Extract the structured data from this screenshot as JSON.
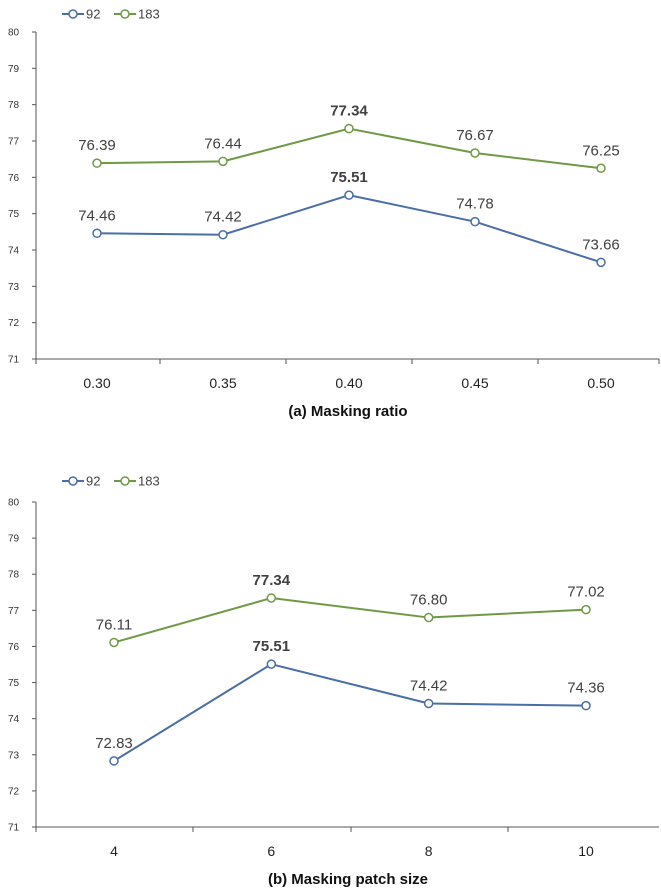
{
  "chart_data": [
    {
      "type": "line",
      "caption": "(a) Masking ratio",
      "categories": [
        "0.30",
        "0.35",
        "0.40",
        "0.45",
        "0.50"
      ],
      "series": [
        {
          "name": "92",
          "values": [
            74.46,
            74.42,
            75.51,
            74.78,
            73.66
          ],
          "color": "#4a6fa5"
        },
        {
          "name": "183",
          "values": [
            76.39,
            76.44,
            77.34,
            76.67,
            76.25
          ],
          "color": "#6f9a45"
        }
      ],
      "bold_index": 2,
      "ylim": [
        71,
        80
      ],
      "yticks": [
        71,
        72,
        73,
        74,
        75,
        76,
        77,
        78,
        79,
        80
      ],
      "legend": "top-left",
      "grid": false
    },
    {
      "type": "line",
      "caption": "(b) Masking patch size",
      "categories": [
        "4",
        "6",
        "8",
        "10"
      ],
      "series": [
        {
          "name": "92",
          "values": [
            72.83,
            75.51,
            74.42,
            74.36
          ],
          "color": "#4a6fa5"
        },
        {
          "name": "183",
          "values": [
            76.11,
            77.34,
            76.8,
            77.02
          ],
          "color": "#6f9a45"
        }
      ],
      "bold_index": 1,
      "ylim": [
        71,
        80
      ],
      "yticks": [
        71,
        72,
        73,
        74,
        75,
        76,
        77,
        78,
        79,
        80
      ],
      "legend": "top-left",
      "grid": false
    }
  ]
}
